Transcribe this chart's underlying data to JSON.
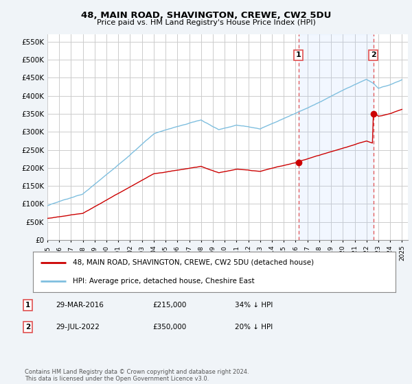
{
  "title": "48, MAIN ROAD, SHAVINGTON, CREWE, CW2 5DU",
  "subtitle": "Price paid vs. HM Land Registry's House Price Index (HPI)",
  "ylabel_ticks": [
    "£0",
    "£50K",
    "£100K",
    "£150K",
    "£200K",
    "£250K",
    "£300K",
    "£350K",
    "£400K",
    "£450K",
    "£500K",
    "£550K"
  ],
  "ytick_values": [
    0,
    50000,
    100000,
    150000,
    200000,
    250000,
    300000,
    350000,
    400000,
    450000,
    500000,
    550000
  ],
  "ylim": [
    0,
    570000
  ],
  "xlim_start": 1995.0,
  "xlim_end": 2025.5,
  "hpi_color": "#7fbfdf",
  "price_color": "#cc0000",
  "sale1_x": 2016.24,
  "sale1_y": 215000,
  "sale2_x": 2022.57,
  "sale2_y": 350000,
  "vline_color": "#e05050",
  "background_color": "#f0f4f8",
  "plot_bg_color": "#ffffff",
  "shade_color": "#ddeeff",
  "grid_color": "#cccccc",
  "legend_label_red": "48, MAIN ROAD, SHAVINGTON, CREWE, CW2 5DU (detached house)",
  "legend_label_blue": "HPI: Average price, detached house, Cheshire East",
  "note1_num": "1",
  "note1_date": "29-MAR-2016",
  "note1_price": "£215,000",
  "note1_pct": "34% ↓ HPI",
  "note2_num": "2",
  "note2_date": "29-JUL-2022",
  "note2_price": "£350,000",
  "note2_pct": "20% ↓ HPI",
  "footer": "Contains HM Land Registry data © Crown copyright and database right 2024.\nThis data is licensed under the Open Government Licence v3.0.",
  "xtick_years": [
    1995,
    1996,
    1997,
    1998,
    1999,
    2000,
    2001,
    2002,
    2003,
    2004,
    2005,
    2006,
    2007,
    2008,
    2009,
    2010,
    2011,
    2012,
    2013,
    2014,
    2015,
    2016,
    2017,
    2018,
    2019,
    2020,
    2021,
    2022,
    2023,
    2024,
    2025
  ]
}
